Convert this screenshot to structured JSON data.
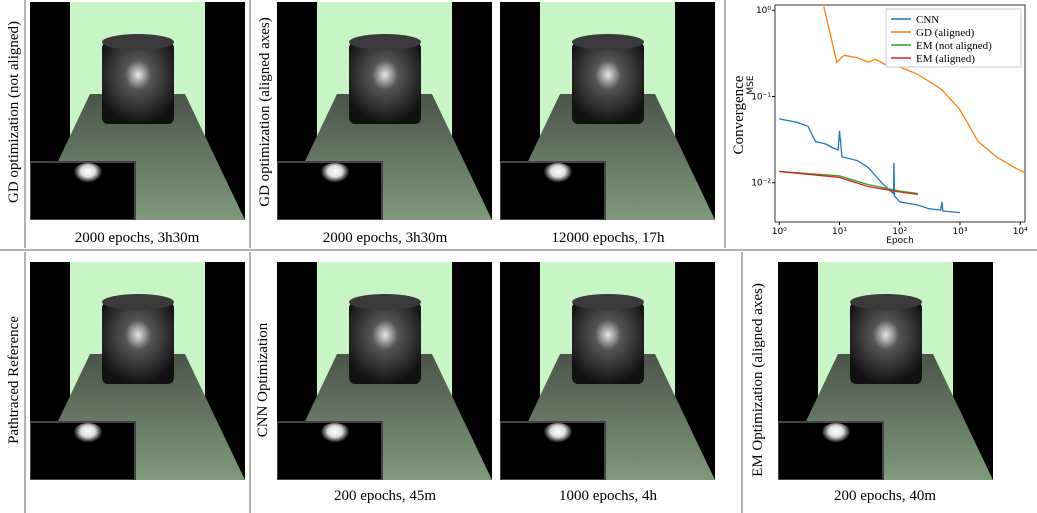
{
  "figure": {
    "top": {
      "labels": [
        "GD optimization (not aligned)",
        "GD optimization (aligned axes)",
        "Convergence"
      ],
      "captions": [
        "2000 epochs, 3h30m",
        "2000 epochs, 3h30m",
        "12000 epochs, 17h"
      ]
    },
    "bottom": {
      "labels": [
        "Pathtraced Reference",
        "CNN Optimization",
        "EM Optimization (aligned axes)"
      ],
      "captions": [
        "200 epochs, 45m",
        "1000 epochs, 4h",
        "200 epochs, 40m"
      ]
    }
  },
  "chart_data": {
    "type": "line",
    "xlabel": "Epoch",
    "ylabel": "MSE",
    "log_x": true,
    "log_y": true,
    "legend": "upper right",
    "xlim": [
      0.85,
      12000
    ],
    "ylim": [
      0.0035,
      1.15
    ],
    "xticks": [
      {
        "value": 1,
        "label": "10⁰"
      },
      {
        "value": 10,
        "label": "10¹"
      },
      {
        "value": 100,
        "label": "10²"
      },
      {
        "value": 1000,
        "label": "10³"
      },
      {
        "value": 10000,
        "label": "10⁴"
      }
    ],
    "yticks": [
      {
        "value": 0.01,
        "label": "10⁻²"
      },
      {
        "value": 0.1,
        "label": "10⁻¹"
      },
      {
        "value": 1,
        "label": "10⁰"
      }
    ],
    "series": [
      {
        "name": "CNN",
        "color": "#1f77b4",
        "x": [
          1,
          2,
          3,
          4,
          6,
          8,
          9.5,
          10,
          11,
          20,
          30,
          50,
          70,
          79,
          80,
          82,
          100,
          200,
          300,
          480,
          500,
          520,
          1000
        ],
        "values": [
          0.055,
          0.05,
          0.045,
          0.03,
          0.028,
          0.025,
          0.024,
          0.04,
          0.02,
          0.018,
          0.015,
          0.01,
          0.008,
          0.0075,
          0.017,
          0.007,
          0.006,
          0.0055,
          0.005,
          0.0048,
          0.006,
          0.0047,
          0.0045
        ]
      },
      {
        "name": "GD (aligned)",
        "color": "#ff7f0e",
        "x": [
          5.5,
          9,
          12,
          20,
          30,
          40,
          60,
          100,
          200,
          500,
          1000,
          2000,
          4000,
          8000,
          12000
        ],
        "values": [
          1.1,
          0.25,
          0.3,
          0.28,
          0.25,
          0.27,
          0.23,
          0.22,
          0.18,
          0.12,
          0.07,
          0.03,
          0.02,
          0.015,
          0.013
        ]
      },
      {
        "name": "EM (not aligned)",
        "color": "#2ca02c",
        "x": [
          1,
          10,
          30,
          100,
          200
        ],
        "values": [
          0.0135,
          0.012,
          0.0095,
          0.008,
          0.0075
        ]
      },
      {
        "name": "EM (aligned)",
        "color": "#d62728",
        "x": [
          1,
          10,
          30,
          100,
          200
        ],
        "values": [
          0.0135,
          0.0115,
          0.009,
          0.0078,
          0.0073
        ]
      }
    ]
  }
}
